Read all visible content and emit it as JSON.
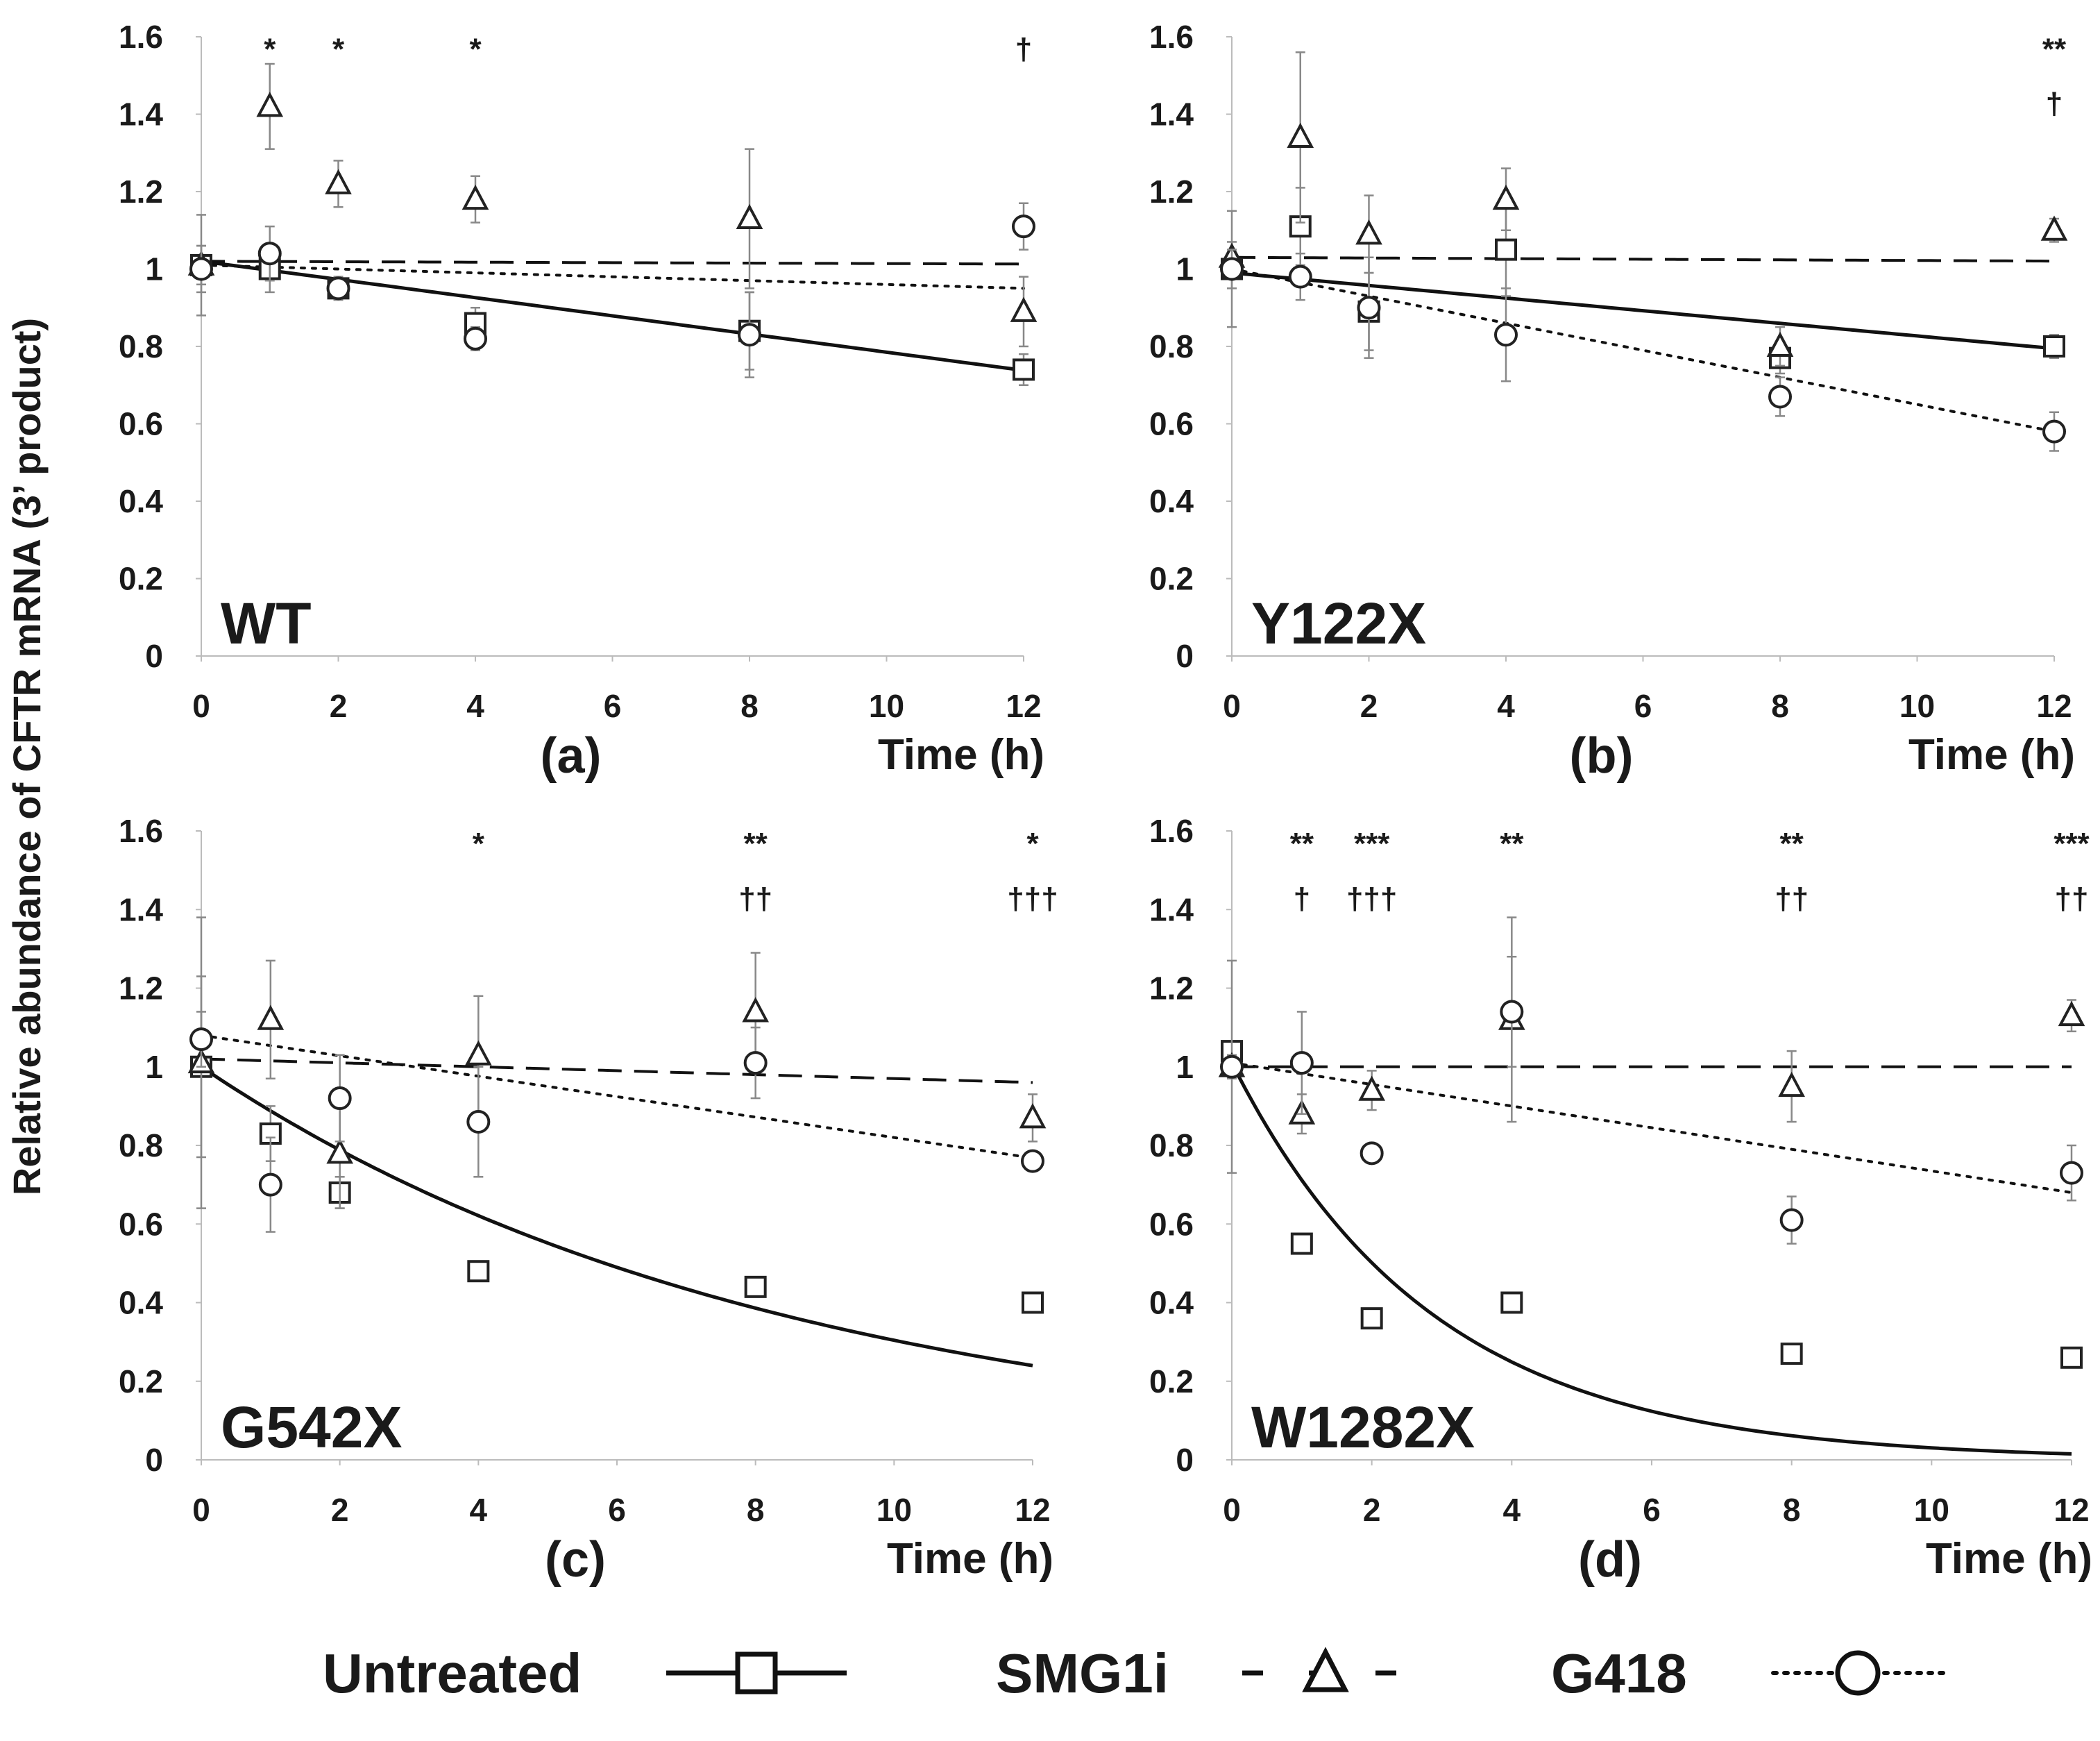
{
  "figure": {
    "ylabel": "Relative abundance of CFTR mRNA (3’ product)"
  },
  "legend": [
    {
      "label": "Untreated",
      "marker": "square",
      "line": "solid"
    },
    {
      "label": "SMG1i",
      "marker": "triangle",
      "line": "dashed"
    },
    {
      "label": "G418",
      "marker": "circle",
      "line": "dotted"
    }
  ],
  "chart_data": [
    {
      "type": "scatter",
      "panel": "(a)",
      "mutation": "WT",
      "xlabel": "Time (h)",
      "ylabel": "Relative abundance of CFTR mRNA (3’ product)",
      "xlim": [
        0,
        12
      ],
      "ylim": [
        0,
        1.6
      ],
      "xticks": [
        "0",
        "2",
        "4",
        "6",
        "8",
        "10",
        "12"
      ],
      "yticks": [
        "0",
        "0.2",
        "0.4",
        "0.6",
        "0.8",
        "1",
        "1.2",
        "1.4",
        "1.6"
      ],
      "x": [
        0,
        1,
        2,
        4,
        8,
        12
      ],
      "series": [
        {
          "name": "Untreated",
          "marker": "square",
          "values": [
            1.01,
            1.0,
            0.95,
            0.86,
            0.84,
            0.74
          ],
          "err": [
            0.13,
            0.06,
            0.03,
            0.04,
            0.1,
            0.04
          ],
          "fit": {
            "kind": "linear",
            "a": 1.02,
            "b": -0.0235
          }
        },
        {
          "name": "SMG1i",
          "marker": "triangle",
          "values": [
            1.01,
            1.42,
            1.22,
            1.18,
            1.13,
            0.89
          ],
          "err": [
            0.05,
            0.11,
            0.06,
            0.06,
            0.18,
            0.09
          ],
          "fit": {
            "kind": "linear",
            "a": 1.02,
            "b": -0.0006
          }
        },
        {
          "name": "G418",
          "marker": "circle",
          "values": [
            1.0,
            1.04,
            0.95,
            0.82,
            0.83,
            1.11
          ],
          "err": [
            0.06,
            0.07,
            0.02,
            0.03,
            0.11,
            0.06
          ],
          "fit": {
            "kind": "linear",
            "a": 1.01,
            "b": -0.005
          }
        }
      ],
      "annotations": [
        {
          "x": 1,
          "y": 1.57,
          "text": "*"
        },
        {
          "x": 2,
          "y": 1.57,
          "text": "*"
        },
        {
          "x": 4,
          "y": 1.57,
          "text": "*"
        },
        {
          "x": 12,
          "y": 1.57,
          "text": "†"
        }
      ]
    },
    {
      "type": "scatter",
      "panel": "(b)",
      "mutation": "Y122X",
      "xlabel": "Time (h)",
      "ylabel": "Relative abundance of CFTR mRNA (3’ product)",
      "xlim": [
        0,
        12
      ],
      "ylim": [
        0,
        1.6
      ],
      "xticks": [
        "0",
        "2",
        "4",
        "6",
        "8",
        "10",
        "12"
      ],
      "yticks": [
        "0",
        "0.2",
        "0.4",
        "0.6",
        "0.8",
        "1",
        "1.2",
        "1.4",
        "1.6"
      ],
      "x": [
        0,
        1,
        2,
        4,
        8,
        12
      ],
      "series": [
        {
          "name": "Untreated",
          "marker": "square",
          "values": [
            1.0,
            1.11,
            0.89,
            1.05,
            0.77,
            0.8
          ],
          "err": [
            0.15,
            0.1,
            0.1,
            0.12,
            0.04,
            0.03
          ],
          "fit": {
            "kind": "linear",
            "a": 0.99,
            "b": -0.0163
          }
        },
        {
          "name": "SMG1i",
          "marker": "triangle",
          "values": [
            1.03,
            1.34,
            1.09,
            1.18,
            0.8,
            1.1
          ],
          "err": [
            0.04,
            0.22,
            0.1,
            0.08,
            0.05,
            0.03
          ],
          "fit": {
            "kind": "linear",
            "a": 1.03,
            "b": -0.0008
          }
        },
        {
          "name": "G418",
          "marker": "circle",
          "values": [
            1.0,
            0.98,
            0.9,
            0.83,
            0.67,
            0.58
          ],
          "err": [
            0.05,
            0.06,
            0.13,
            0.12,
            0.05,
            0.05
          ],
          "fit": {
            "kind": "linear",
            "a": 1.0,
            "b": -0.035
          }
        }
      ],
      "annotations": [
        {
          "x": 12,
          "y": 1.57,
          "text": "**"
        },
        {
          "x": 12,
          "y": 1.43,
          "text": "†"
        }
      ]
    },
    {
      "type": "scatter",
      "panel": "(c)",
      "mutation": "G542X",
      "xlabel": "Time (h)",
      "ylabel": "Relative abundance of CFTR mRNA (3’ product)",
      "xlim": [
        0,
        12
      ],
      "ylim": [
        0,
        1.6
      ],
      "xticks": [
        "0",
        "2",
        "4",
        "6",
        "8",
        "10",
        "12"
      ],
      "yticks": [
        "0",
        "0.2",
        "0.4",
        "0.6",
        "0.8",
        "1",
        "1.2",
        "1.4",
        "1.6"
      ],
      "x": [
        0,
        1,
        2,
        4,
        8,
        12
      ],
      "series": [
        {
          "name": "Untreated",
          "marker": "square",
          "values": [
            1.0,
            0.83,
            0.68,
            0.48,
            0.44,
            0.4
          ],
          "err": [
            0.23,
            0.07,
            0.04,
            0.01,
            0.02,
            0.01
          ],
          "fit": {
            "kind": "exp",
            "a": 1.0,
            "k": 0.119
          }
        },
        {
          "name": "SMG1i",
          "marker": "triangle",
          "values": [
            1.01,
            1.12,
            0.78,
            1.03,
            1.14,
            0.87
          ],
          "err": [
            0.37,
            0.15,
            0.14,
            0.15,
            0.15,
            0.06
          ],
          "fit": {
            "kind": "linear",
            "a": 1.02,
            "b": -0.005
          }
        },
        {
          "name": "G418",
          "marker": "circle",
          "values": [
            1.07,
            0.7,
            0.92,
            0.86,
            1.01,
            0.76
          ],
          "err": [
            0.07,
            0.12,
            0.11,
            0.14,
            0.09,
            0.02
          ],
          "fit": {
            "kind": "linear",
            "a": 1.08,
            "b": -0.026
          }
        }
      ],
      "annotations": [
        {
          "x": 4,
          "y": 1.57,
          "text": "*"
        },
        {
          "x": 8,
          "y": 1.57,
          "text": "**"
        },
        {
          "x": 12,
          "y": 1.57,
          "text": "*"
        },
        {
          "x": 8,
          "y": 1.43,
          "text": "††"
        },
        {
          "x": 12,
          "y": 1.43,
          "text": "†††"
        }
      ]
    },
    {
      "type": "scatter",
      "panel": "(d)",
      "mutation": "W1282X",
      "xlabel": "Time (h)",
      "ylabel": "Relative abundance of CFTR mRNA (3’ product)",
      "xlim": [
        0,
        12
      ],
      "ylim": [
        0,
        1.6
      ],
      "xticks": [
        "0",
        "2",
        "4",
        "6",
        "8",
        "10",
        "12"
      ],
      "yticks": [
        "0",
        "0.2",
        "0.4",
        "0.6",
        "0.8",
        "1",
        "1.2",
        "1.4",
        "1.6"
      ],
      "x": [
        0,
        1,
        2,
        4,
        8,
        12
      ],
      "series": [
        {
          "name": "Untreated",
          "marker": "square",
          "values": [
            1.04,
            0.55,
            0.36,
            0.4,
            0.27,
            0.26
          ],
          "err": [
            0.02,
            0.02,
            0.02,
            0.02,
            0.02,
            0.02
          ],
          "fit": {
            "kind": "exp",
            "a": 1.01,
            "k": 0.35
          }
        },
        {
          "name": "SMG1i",
          "marker": "triangle",
          "values": [
            1.0,
            0.88,
            0.94,
            1.12,
            0.95,
            1.13
          ],
          "err": [
            0.27,
            0.05,
            0.05,
            0.26,
            0.09,
            0.04
          ],
          "fit": {
            "kind": "linear",
            "a": 1.0,
            "b": 0.0
          }
        },
        {
          "name": "G418",
          "marker": "circle",
          "values": [
            1.0,
            1.01,
            0.78,
            1.14,
            0.61,
            0.73
          ],
          "err": [
            0.03,
            0.13,
            0.02,
            0.14,
            0.06,
            0.07
          ],
          "fit": {
            "kind": "linear",
            "a": 1.01,
            "b": -0.0275
          }
        }
      ],
      "annotations": [
        {
          "x": 1,
          "y": 1.57,
          "text": "**"
        },
        {
          "x": 2,
          "y": 1.57,
          "text": "***"
        },
        {
          "x": 4,
          "y": 1.57,
          "text": "**"
        },
        {
          "x": 8,
          "y": 1.57,
          "text": "**"
        },
        {
          "x": 12,
          "y": 1.57,
          "text": "***"
        },
        {
          "x": 1,
          "y": 1.43,
          "text": "†"
        },
        {
          "x": 2,
          "y": 1.43,
          "text": "†††"
        },
        {
          "x": 8,
          "y": 1.43,
          "text": "††"
        },
        {
          "x": 12,
          "y": 1.43,
          "text": "††"
        }
      ]
    }
  ]
}
